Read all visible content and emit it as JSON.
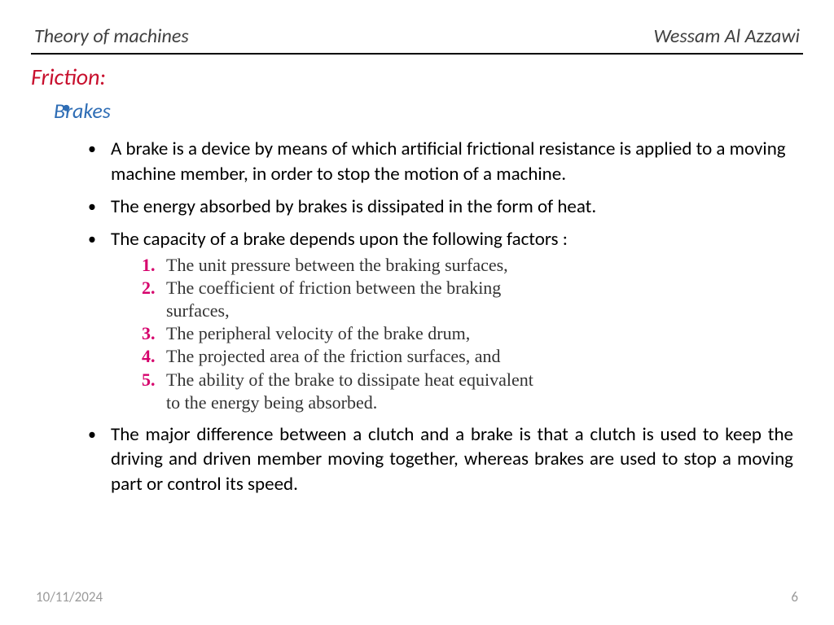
{
  "header": {
    "left": "Theory of machines",
    "right": "Wessam Al Azzawi"
  },
  "section_title": "Friction:",
  "colors": {
    "section_title": "#c8102e",
    "topic": "#2e6db5",
    "bullet_marker": "#2e6db5",
    "numbered_marker": "#d6006c",
    "body_text": "#000000",
    "numbered_text": "#333333",
    "header_text": "#404040",
    "footer_text": "#9b9b9b",
    "rule": "#000000",
    "background": "#ffffff"
  },
  "typography": {
    "header_fontsize": 24,
    "section_title_fontsize": 28,
    "topic_fontsize": 26,
    "body_fontsize": 23,
    "numbered_fontsize": 22,
    "footer_fontsize": 17,
    "body_family": "Calibri",
    "numbered_family": "Times New Roman"
  },
  "topic": {
    "label": "Brakes",
    "bullets": {
      "b1": "A brake is a device by means of which artificial frictional resistance is applied to a moving machine member, in order to stop the motion of a machine.",
      "b2": "The energy absorbed by brakes is dissipated in the form of heat.",
      "b3": "The capacity of a brake depends upon the following factors :",
      "b4": "The major difference between a clutch and a brake is that a clutch is used to keep the driving and driven member moving together, whereas brakes are used to stop a moving part or control its speed."
    },
    "factors": {
      "n1": {
        "num": "1.",
        "text": "The unit pressure between the braking surfaces,"
      },
      "n2": {
        "num": "2.",
        "text_line1": "The coefficient of friction between the braking",
        "text_line2": "surfaces,"
      },
      "n3": {
        "num": "3.",
        "text": "The peripheral velocity of the brake drum,"
      },
      "n4": {
        "num": "4.",
        "text": "The projected area of the friction surfaces, and"
      },
      "n5": {
        "num": "5.",
        "text_line1": "The ability of the brake to dissipate heat equivalent",
        "text_line2": "to the energy being absorbed."
      }
    }
  },
  "footer": {
    "date": "10/11/2024",
    "page": "6"
  }
}
